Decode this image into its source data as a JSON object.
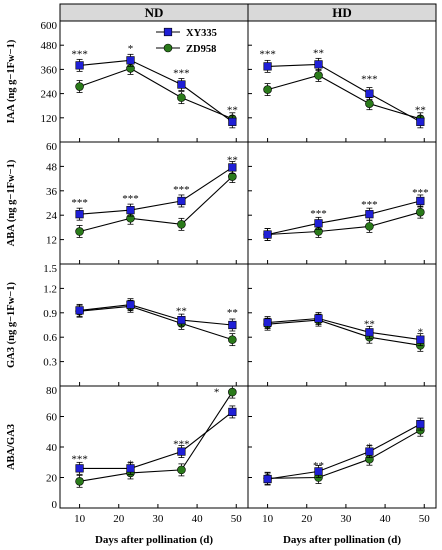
{
  "figure": {
    "x_axis_label": "Days after pollination (d)",
    "column_titles": [
      "ND",
      "HD"
    ],
    "x_ticks": [
      10,
      20,
      30,
      40,
      50
    ],
    "xlim": [
      5,
      53
    ],
    "legend": [
      {
        "name": "XY335",
        "color": "#1f1fd6",
        "marker": "square"
      },
      {
        "name": "ZD958",
        "color": "#2a7a1a",
        "marker": "circle"
      }
    ]
  },
  "chart_data": [
    {
      "type": "line",
      "row": 0,
      "col": 0,
      "panel": "ND",
      "ylabel": "IAA (ng g−1Fw−1)",
      "ylim": [
        0,
        600
      ],
      "yticks": [
        0,
        120,
        240,
        360,
        480,
        600
      ],
      "ytick_labels": [
        "",
        "120",
        "240",
        "360",
        "480",
        "600"
      ],
      "x": [
        10,
        23,
        36,
        49
      ],
      "series": [
        {
          "name": "XY335",
          "values": [
            380,
            405,
            285,
            100
          ]
        },
        {
          "name": "ZD958",
          "values": [
            275,
            365,
            220,
            115
          ]
        }
      ],
      "annotations": [
        "***",
        "*",
        "***",
        "**"
      ],
      "annotation_y": [
        445,
        470,
        350,
        165
      ]
    },
    {
      "type": "line",
      "row": 0,
      "col": 1,
      "panel": "HD",
      "ylabel": "",
      "ylim": [
        0,
        600
      ],
      "x": [
        10,
        23,
        36,
        49
      ],
      "series": [
        {
          "name": "XY335",
          "values": [
            375,
            385,
            240,
            100
          ]
        },
        {
          "name": "ZD958",
          "values": [
            260,
            330,
            190,
            115
          ]
        }
      ],
      "annotations": [
        "***",
        "**",
        "***",
        "**"
      ],
      "annotation_y": [
        445,
        450,
        320,
        165
      ]
    },
    {
      "type": "line",
      "row": 1,
      "col": 0,
      "panel": "ND",
      "ylabel": "ABA (ng g−1Fw−1)",
      "ylim": [
        0,
        60
      ],
      "yticks": [
        0,
        12,
        24,
        36,
        48,
        60
      ],
      "ytick_labels": [
        "",
        "12",
        "24",
        "36",
        "48",
        "60"
      ],
      "x": [
        10,
        23,
        36,
        49
      ],
      "series": [
        {
          "name": "XY335",
          "values": [
            24.5,
            26.5,
            31,
            47.5
          ]
        },
        {
          "name": "ZD958",
          "values": [
            16,
            22.5,
            19.5,
            43
          ]
        }
      ],
      "annotations": [
        "***",
        "***",
        "***",
        "**"
      ],
      "annotation_y": [
        31,
        33,
        37.5,
        52
      ]
    },
    {
      "type": "line",
      "row": 1,
      "col": 1,
      "panel": "HD",
      "ylabel": "",
      "ylim": [
        0,
        60
      ],
      "x": [
        10,
        23,
        36,
        49
      ],
      "series": [
        {
          "name": "XY335",
          "values": [
            14.5,
            20,
            24.5,
            31
          ]
        },
        {
          "name": "ZD958",
          "values": [
            14.5,
            16,
            18.5,
            25.5
          ]
        }
      ],
      "annotations": [
        "***",
        "***",
        "***"
      ],
      "annotation_x": [
        23,
        36,
        49
      ],
      "annotation_y": [
        25.5,
        30,
        36
      ]
    },
    {
      "type": "line",
      "row": 2,
      "col": 0,
      "panel": "ND",
      "ylabel": "GA3 (ng g−1Fw−1)",
      "ylim": [
        0,
        1.5
      ],
      "yticks": [
        0,
        0.3,
        0.6,
        0.9,
        1.2,
        1.5
      ],
      "ytick_labels": [
        "",
        "0.3",
        "0.6",
        "0.9",
        "1.2",
        "1.5"
      ],
      "x": [
        10,
        23,
        36,
        49
      ],
      "series": [
        {
          "name": "XY335",
          "values": [
            0.93,
            1.0,
            0.81,
            0.75
          ]
        },
        {
          "name": "ZD958",
          "values": [
            0.92,
            0.98,
            0.77,
            0.57
          ]
        }
      ],
      "annotations": [
        "**",
        "**"
      ],
      "annotation_x": [
        36,
        49
      ],
      "annotation_y": [
        0.94,
        0.92
      ]
    },
    {
      "type": "line",
      "row": 2,
      "col": 1,
      "panel": "HD",
      "ylabel": "",
      "ylim": [
        0,
        1.5
      ],
      "x": [
        10,
        23,
        36,
        49
      ],
      "series": [
        {
          "name": "XY335",
          "values": [
            0.78,
            0.83,
            0.66,
            0.57
          ]
        },
        {
          "name": "ZD958",
          "values": [
            0.76,
            0.81,
            0.6,
            0.5
          ]
        }
      ],
      "annotations": [
        "**",
        "*"
      ],
      "annotation_x": [
        36,
        49
      ],
      "annotation_y": [
        0.78,
        0.68
      ]
    },
    {
      "type": "line",
      "row": 3,
      "col": 0,
      "panel": "ND",
      "ylabel": "ABA/GA3",
      "ylim": [
        0,
        80
      ],
      "yticks": [
        0,
        20,
        40,
        60,
        80
      ],
      "ytick_labels": [
        "0",
        "20",
        "40",
        "60",
        "80"
      ],
      "x": [
        10,
        23,
        36,
        49
      ],
      "series": [
        {
          "name": "XY335",
          "values": [
            26,
            26,
            37,
            63
          ]
        },
        {
          "name": "ZD958",
          "values": [
            17.5,
            23,
            25,
            76
          ]
        }
      ],
      "annotations": [
        "***",
        "*",
        "***",
        "*"
      ],
      "annotation_x": [
        10,
        23,
        36,
        45
      ],
      "annotation_y": [
        33,
        30,
        43,
        77
      ]
    },
    {
      "type": "line",
      "row": 3,
      "col": 1,
      "panel": "HD",
      "ylabel": "",
      "ylim": [
        0,
        80
      ],
      "x": [
        10,
        23,
        36,
        49
      ],
      "series": [
        {
          "name": "XY335",
          "values": [
            19,
            24,
            37,
            55
          ]
        },
        {
          "name": "ZD958",
          "values": [
            19.5,
            20,
            32,
            51
          ]
        }
      ],
      "annotations": [
        "**",
        "*"
      ],
      "annotation_x": [
        23,
        36
      ],
      "annotation_y": [
        29,
        41
      ]
    }
  ]
}
